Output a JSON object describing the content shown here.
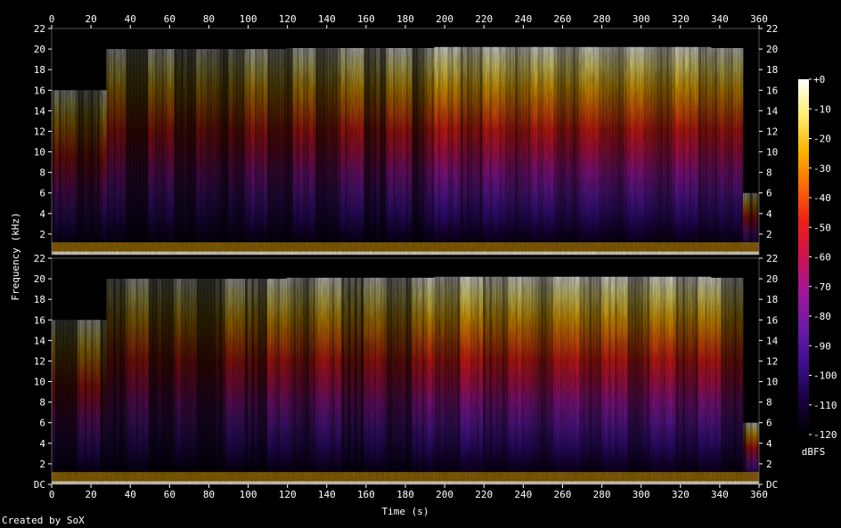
{
  "chart_data": {
    "type": "heatmap",
    "xlabel": "Time (s)",
    "ylabel": "Frequency (kHz)",
    "x_ticks": [
      "0",
      "20",
      "40",
      "60",
      "80",
      "100",
      "120",
      "140",
      "160",
      "180",
      "200",
      "220",
      "240",
      "260",
      "280",
      "300",
      "320",
      "340",
      "360"
    ],
    "xlim": [
      0,
      360
    ],
    "y_ticks": [
      "DC",
      "2",
      "4",
      "6",
      "8",
      "10",
      "12",
      "14",
      "16",
      "18",
      "20",
      "22"
    ],
    "ylim": [
      0,
      22
    ],
    "channels": 2,
    "colorbar": {
      "label": "dBFS",
      "ticks": [
        "+0",
        "-10",
        "-20",
        "-30",
        "-40",
        "-50",
        "-60",
        "-70",
        "-80",
        "-90",
        "-100",
        "-110",
        "-120"
      ],
      "range": [
        -120,
        0
      ],
      "colors": [
        "#000000",
        "#1a0040",
        "#3c0f8c",
        "#6a1aa8",
        "#a0169a",
        "#cc1450",
        "#ee1f14",
        "#fb6a08",
        "#fcb400",
        "#ffee70",
        "#ffffff"
      ]
    },
    "credit": "Created by SoX"
  }
}
